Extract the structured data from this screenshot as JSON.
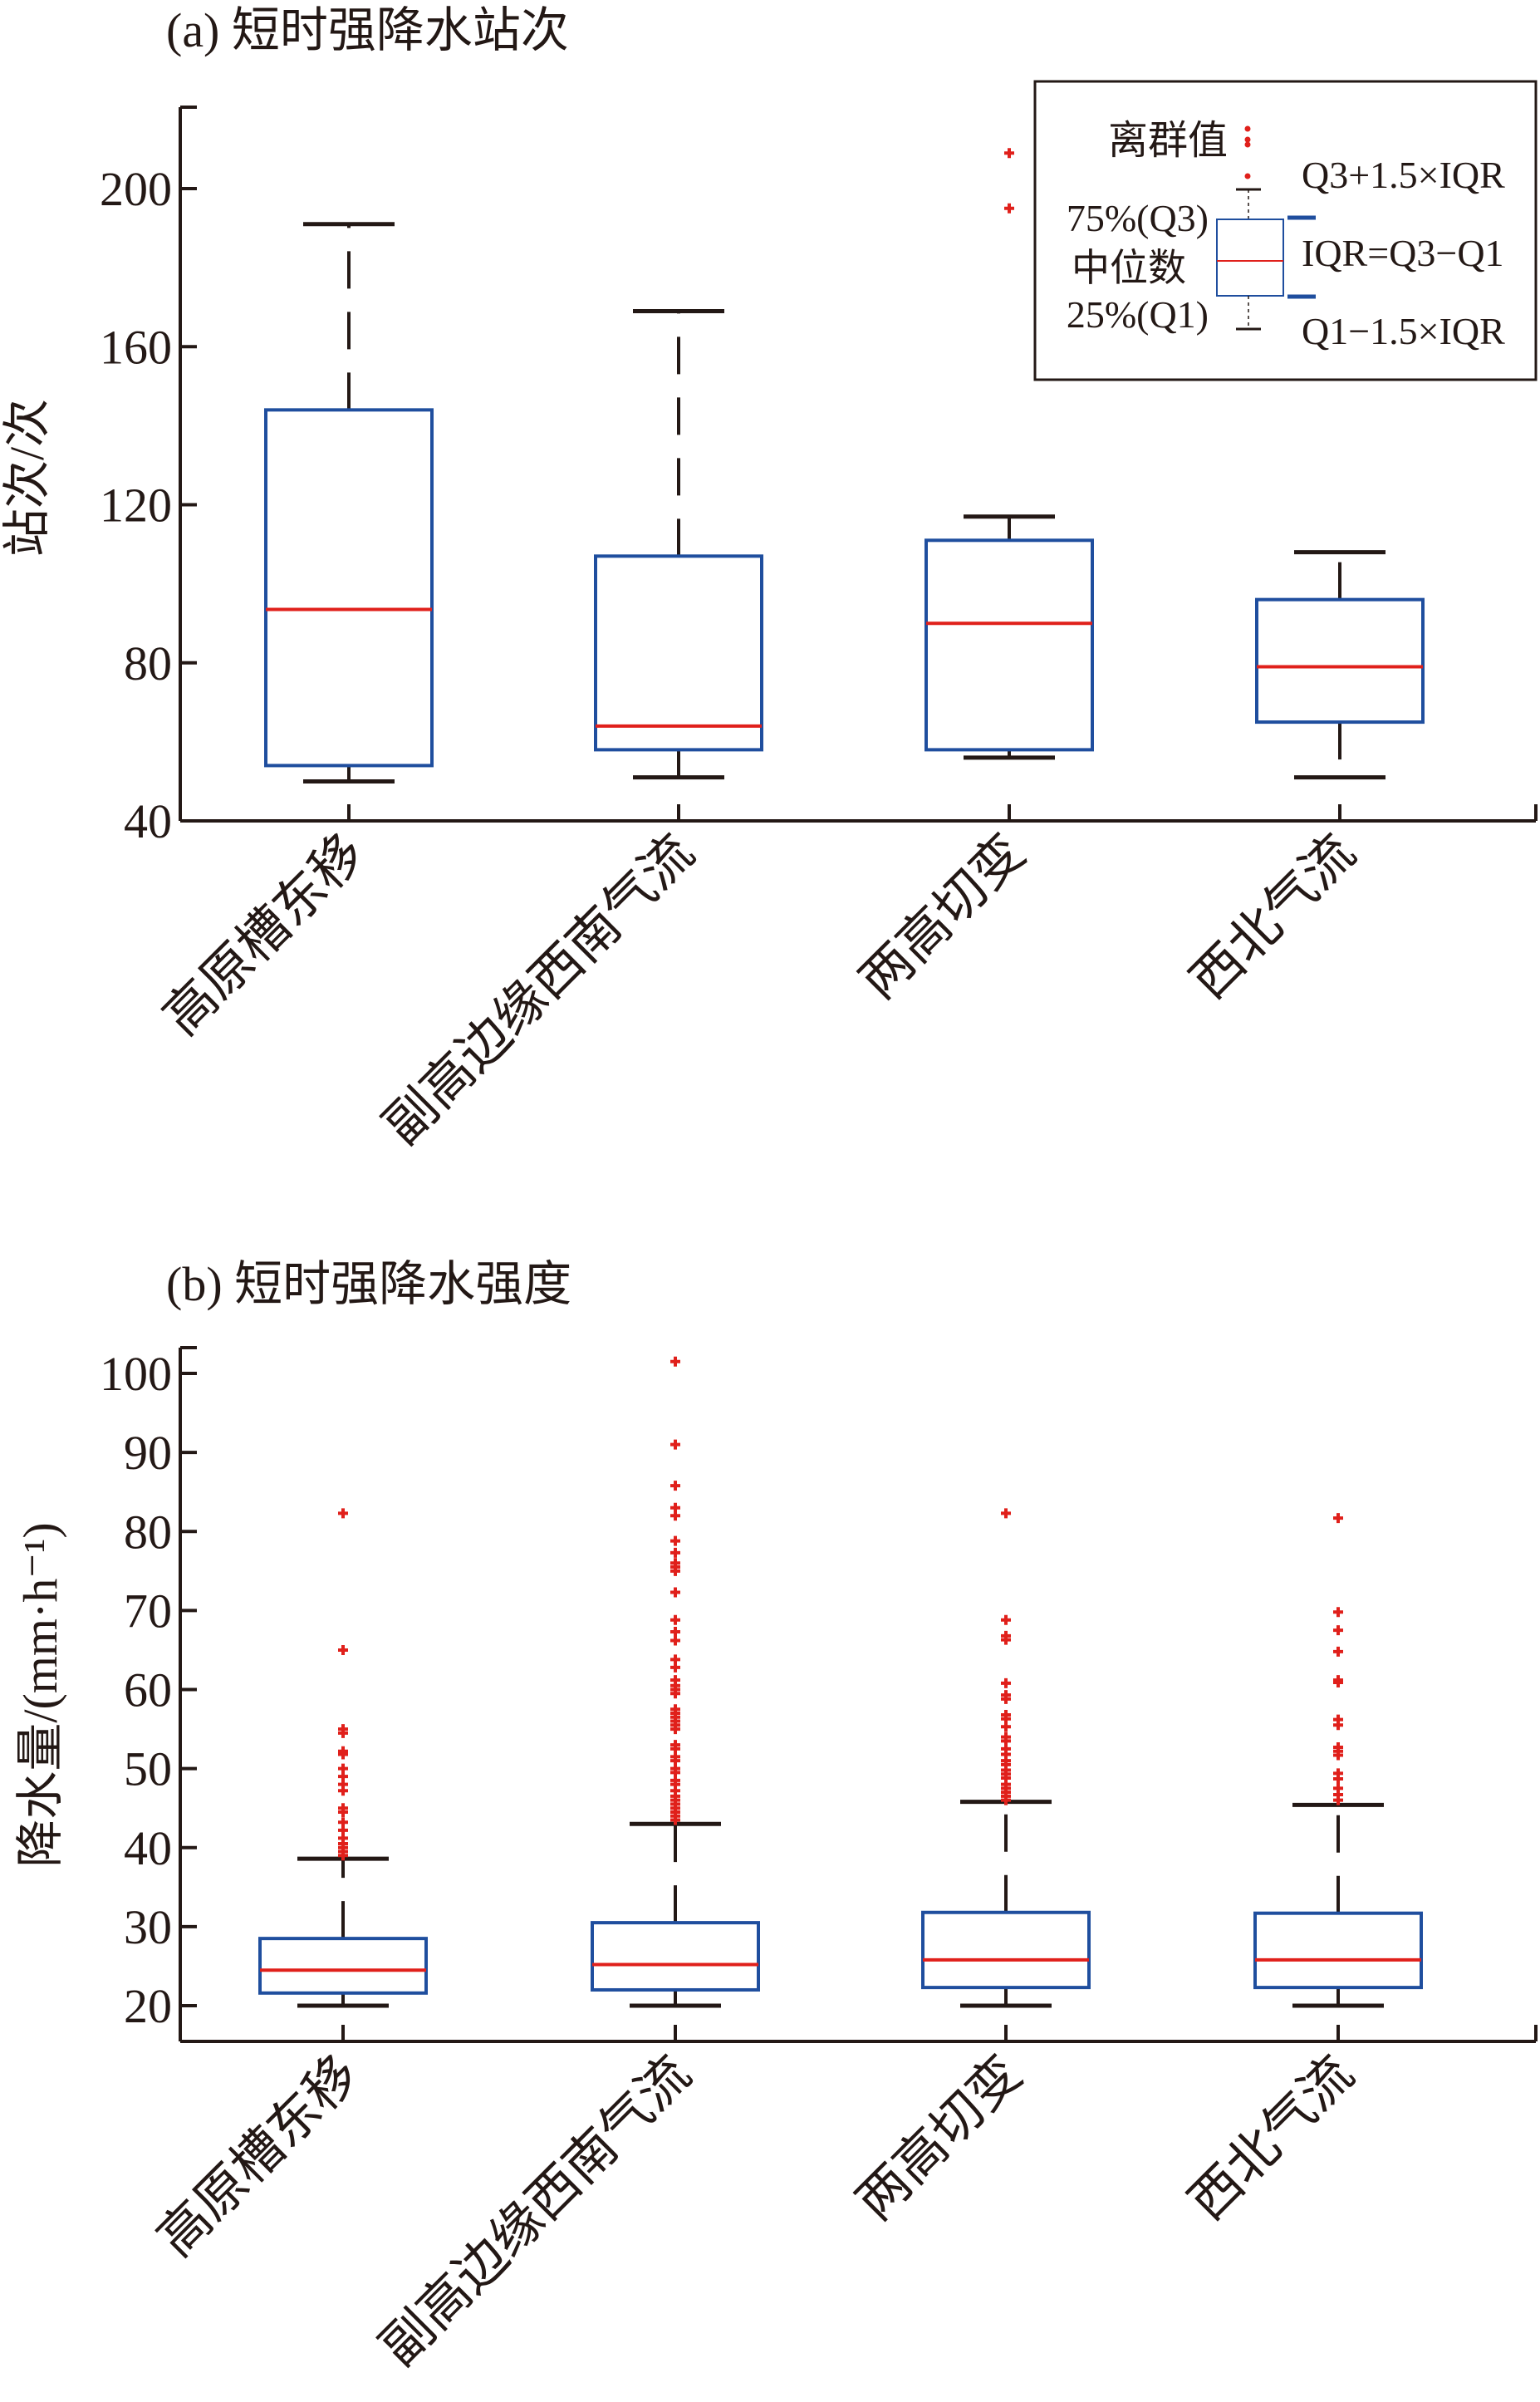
{
  "colors": {
    "box": "#1f4e9e",
    "median": "#e0201b",
    "outlier": "#e0201b",
    "axis": "#231815"
  },
  "chart_data": [
    {
      "type": "box",
      "title": "(a) 短时强降水站次",
      "ylabel": "站次/次",
      "xlabel": "",
      "ylim": [
        40,
        220
      ],
      "yticks": [
        40,
        80,
        120,
        160,
        200
      ],
      "categories": [
        "高原槽东移",
        "副高边缘西南气流",
        "两高切变",
        "西北气流"
      ],
      "boxes": [
        {
          "lower_whisker": 50,
          "q1": 54,
          "median": 93.5,
          "q3": 144,
          "upper_whisker": 191,
          "outliers": []
        },
        {
          "lower_whisker": 51,
          "q1": 58,
          "median": 64,
          "q3": 107,
          "upper_whisker": 169,
          "outliers": []
        },
        {
          "lower_whisker": 56,
          "q1": 58,
          "median": 90,
          "q3": 111,
          "upper_whisker": 117,
          "outliers": [
            209,
            195
          ]
        },
        {
          "lower_whisker": 51,
          "q1": 65,
          "median": 79,
          "q3": 96,
          "upper_whisker": 108,
          "outliers": []
        }
      ],
      "legend": {
        "placement": "top-right",
        "outlier_label": "离群值",
        "q3_label": "75%(Q3)",
        "median_label": "中位数",
        "q1_label": "25%(Q1)",
        "upper_label": "Q3+1.5×IQR",
        "iqr_label": "IQR=Q3−Q1",
        "lower_label": "Q1−1.5×IQR"
      }
    },
    {
      "type": "box",
      "title": "(b) 短时强降水强度",
      "ylabel": "降水量/(mm·h⁻¹)",
      "xlabel": "",
      "ylim": [
        14,
        103
      ],
      "yticks": [
        20,
        30,
        40,
        50,
        60,
        70,
        80,
        90,
        100
      ],
      "categories": [
        "高原槽东移",
        "副高边缘西南气流",
        "两高切变",
        "西北气流"
      ],
      "boxes": [
        {
          "lower_whisker": 20,
          "q1": 21.6,
          "median": 24.5,
          "q3": 28.5,
          "upper_whisker": 38.6,
          "outliers": [
            82.3,
            65,
            55,
            54.5,
            52.2,
            51.8,
            50,
            49,
            48,
            47.2,
            45,
            44.5,
            43.2,
            42.2,
            41.2,
            40.5,
            40,
            39.5,
            39
          ]
        },
        {
          "lower_whisker": 20,
          "q1": 22,
          "median": 25.2,
          "q3": 30.5,
          "upper_whisker": 43,
          "outliers": [
            101.5,
            91,
            85.8,
            83,
            82,
            78.8,
            77.3,
            76,
            75.5,
            75,
            72.3,
            68.8,
            67.3,
            66.2,
            63.8,
            62.8,
            61.2,
            60.5,
            60,
            59.5,
            57.5,
            57,
            56.5,
            56,
            55.5,
            55,
            53,
            52.5,
            51.5,
            51,
            50,
            49.5,
            48.5,
            48,
            47.2,
            46.5,
            46,
            45.5,
            45,
            44.5,
            44,
            43.5
          ]
        },
        {
          "lower_whisker": 20,
          "q1": 22.3,
          "median": 25.8,
          "q3": 31.8,
          "upper_whisker": 45.8,
          "outliers": [
            82.3,
            68.8,
            66.8,
            66.3,
            60.8,
            59.3,
            58.8,
            56.8,
            56.3,
            55.3,
            54,
            53.5,
            52.5,
            51.8,
            51,
            50.5,
            49.8,
            49.3,
            48.8,
            48,
            47.5,
            47,
            46.5,
            46
          ]
        },
        {
          "lower_whisker": 20,
          "q1": 22.3,
          "median": 25.8,
          "q3": 31.7,
          "upper_whisker": 45.4,
          "outliers": [
            81.7,
            69.8,
            67.5,
            64.8,
            61.2,
            60.9,
            56.2,
            55.5,
            52.7,
            52.2,
            51.7,
            49.4,
            48.7,
            47.5,
            46.7,
            46
          ]
        }
      ]
    }
  ]
}
